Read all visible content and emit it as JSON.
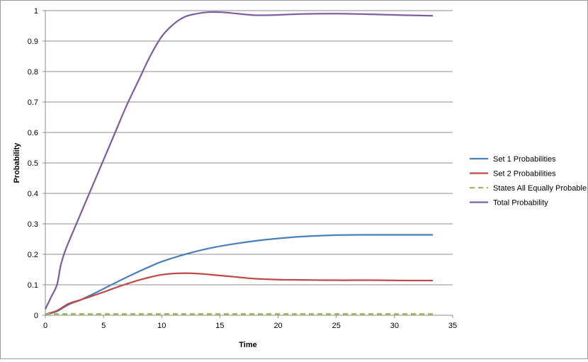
{
  "chart_data": {
    "type": "line",
    "xlabel": "Time",
    "ylabel": "Probability",
    "xlim": [
      0,
      35
    ],
    "ylim": [
      0,
      1
    ],
    "xticks": [
      0,
      5,
      10,
      15,
      20,
      25,
      30,
      35
    ],
    "yticks": [
      0,
      0.1,
      0.2,
      0.3,
      0.4,
      0.5,
      0.6,
      0.7,
      0.8,
      0.9,
      1
    ],
    "grid": "horizontal",
    "legend_position": "right",
    "series": [
      {
        "name": "Set 1 Probabilities",
        "color": "#4a7ebb",
        "dash": false,
        "x": [
          0,
          1,
          2,
          3,
          4,
          5,
          6,
          7,
          8,
          9,
          10,
          12,
          14,
          16,
          18,
          20,
          22,
          25,
          28,
          31,
          33.3
        ],
        "y": [
          0.003,
          0.013,
          0.035,
          0.05,
          0.068,
          0.087,
          0.106,
          0.125,
          0.143,
          0.16,
          0.176,
          0.2,
          0.219,
          0.233,
          0.244,
          0.252,
          0.258,
          0.263,
          0.264,
          0.264,
          0.264
        ]
      },
      {
        "name": "Set 2 Probabilities",
        "color": "#be4b48",
        "dash": false,
        "x": [
          0,
          1,
          2,
          3,
          4,
          5,
          6,
          7,
          8,
          9,
          10,
          11,
          12,
          13,
          14,
          16,
          18,
          20,
          22,
          25,
          28,
          31,
          33.3
        ],
        "y": [
          0.003,
          0.015,
          0.038,
          0.05,
          0.063,
          0.076,
          0.09,
          0.103,
          0.115,
          0.125,
          0.133,
          0.137,
          0.138,
          0.137,
          0.134,
          0.127,
          0.12,
          0.117,
          0.116,
          0.115,
          0.115,
          0.114,
          0.114
        ]
      },
      {
        "name": "States All Equally Probable",
        "color": "#98b954",
        "dash": true,
        "x": [
          0,
          33.3
        ],
        "y": [
          0.004,
          0.004
        ]
      },
      {
        "name": "Total Probability",
        "color": "#7d5fa0",
        "dash": false,
        "x": [
          0,
          0.5,
          1,
          1.3,
          1.6,
          2,
          3,
          4,
          5,
          6,
          7,
          8,
          9,
          10,
          11,
          12,
          13,
          14,
          15,
          16,
          17,
          18,
          19,
          20,
          22,
          25,
          28,
          31,
          33.3
        ],
        "y": [
          0.02,
          0.06,
          0.1,
          0.16,
          0.2,
          0.24,
          0.33,
          0.42,
          0.51,
          0.6,
          0.69,
          0.77,
          0.85,
          0.915,
          0.955,
          0.98,
          0.99,
          0.995,
          0.995,
          0.992,
          0.988,
          0.985,
          0.985,
          0.986,
          0.989,
          0.99,
          0.988,
          0.985,
          0.983
        ]
      }
    ]
  }
}
